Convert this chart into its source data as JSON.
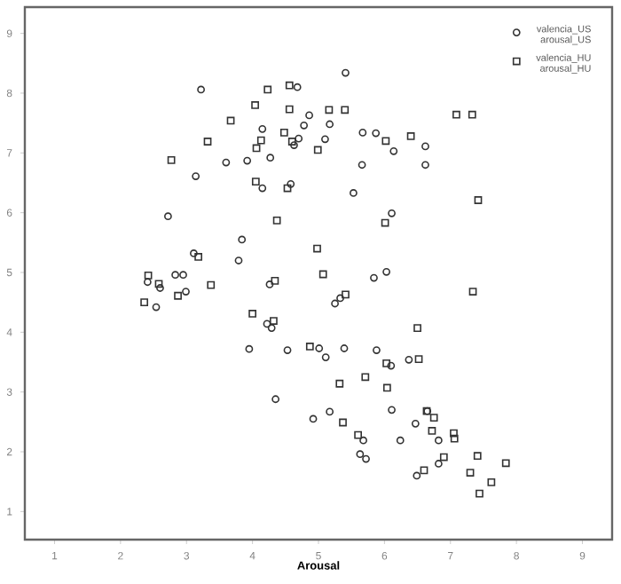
{
  "chart_data": {
    "type": "scatter",
    "xlabel": "Arousal",
    "xlim": [
      0.55,
      9.45
    ],
    "ylim": [
      0.53,
      9.44
    ],
    "xticks": [
      1,
      2,
      3,
      4,
      5,
      6,
      7,
      8,
      9
    ],
    "yticks": [
      1,
      2,
      3,
      4,
      5,
      6,
      7,
      8,
      9
    ],
    "grid": false,
    "legend": "top right",
    "series": [
      {
        "name": "valencia_US arousal_US",
        "color": "#333333",
        "marker": "circle",
        "x": [
          3.22,
          4.68,
          4.86,
          4.78,
          4.15,
          4.7,
          4.63,
          3.6,
          3.92,
          4.27,
          3.14,
          4.15,
          4.58,
          2.72,
          3.84,
          3.11,
          3.79,
          2.83,
          2.95,
          2.41,
          2.99,
          2.6,
          4.26,
          2.54,
          4.22,
          4.29,
          3.95,
          4.53,
          4.35,
          4.92,
          5.41,
          5.17,
          5.1,
          5.67,
          5.87,
          6.14,
          6.62,
          5.66,
          6.62,
          5.53,
          6.11,
          5.84,
          6.03,
          5.25,
          5.33,
          5.01,
          5.11,
          5.39,
          5.88,
          6.1,
          6.37,
          5.17,
          6.11,
          6.47,
          6.24,
          5.68,
          5.63,
          5.72,
          6.82,
          6.65,
          6.82,
          6.49
        ],
        "values": [
          8.06,
          8.1,
          7.63,
          7.46,
          7.4,
          7.24,
          7.13,
          6.84,
          6.87,
          6.92,
          6.61,
          6.41,
          6.48,
          5.94,
          5.55,
          5.32,
          5.2,
          4.96,
          4.96,
          4.84,
          4.68,
          4.74,
          4.8,
          4.42,
          4.14,
          4.07,
          3.72,
          3.7,
          2.88,
          2.55,
          8.34,
          7.48,
          7.23,
          7.34,
          7.33,
          7.03,
          7.11,
          6.8,
          6.8,
          6.33,
          5.99,
          4.91,
          5.01,
          4.48,
          4.57,
          3.73,
          3.58,
          3.73,
          3.7,
          3.44,
          3.54,
          2.67,
          2.7,
          2.47,
          2.19,
          2.19,
          1.96,
          1.88,
          2.19,
          2.68,
          1.8,
          1.6
        ]
      },
      {
        "name": "valencia_HU arousal_HU",
        "color": "#333333",
        "marker": "square",
        "x": [
          4.23,
          4.56,
          4.56,
          4.04,
          3.67,
          4.48,
          4.13,
          4.06,
          3.32,
          4.6,
          4.99,
          2.77,
          4.05,
          4.53,
          4.37,
          4.98,
          3.18,
          2.42,
          2.58,
          2.87,
          3.37,
          4.34,
          2.36,
          4.0,
          4.32,
          4.87,
          5.16,
          5.4,
          7.09,
          7.33,
          6.02,
          6.4,
          7.42,
          6.01,
          5.07,
          7.34,
          6.5,
          5.71,
          5.32,
          6.04,
          5.37,
          5.6,
          6.64,
          6.75,
          6.72,
          7.05,
          7.06,
          6.9,
          6.6,
          7.41,
          7.84,
          7.3,
          7.62,
          7.44,
          6.03,
          6.52,
          5.41
        ],
        "values": [
          8.06,
          8.13,
          7.73,
          7.8,
          7.54,
          7.34,
          7.21,
          7.08,
          7.19,
          7.19,
          7.05,
          6.88,
          6.52,
          6.41,
          5.87,
          5.4,
          5.26,
          4.95,
          4.81,
          4.61,
          4.79,
          4.86,
          4.5,
          4.31,
          4.19,
          3.76,
          7.72,
          7.72,
          7.64,
          7.64,
          7.2,
          7.28,
          6.21,
          5.83,
          4.97,
          4.68,
          4.07,
          3.25,
          3.14,
          3.07,
          2.49,
          2.28,
          2.68,
          2.57,
          2.35,
          2.31,
          2.22,
          1.91,
          1.69,
          1.93,
          1.81,
          1.65,
          1.49,
          1.3,
          3.48,
          3.55,
          4.63
        ]
      }
    ]
  }
}
